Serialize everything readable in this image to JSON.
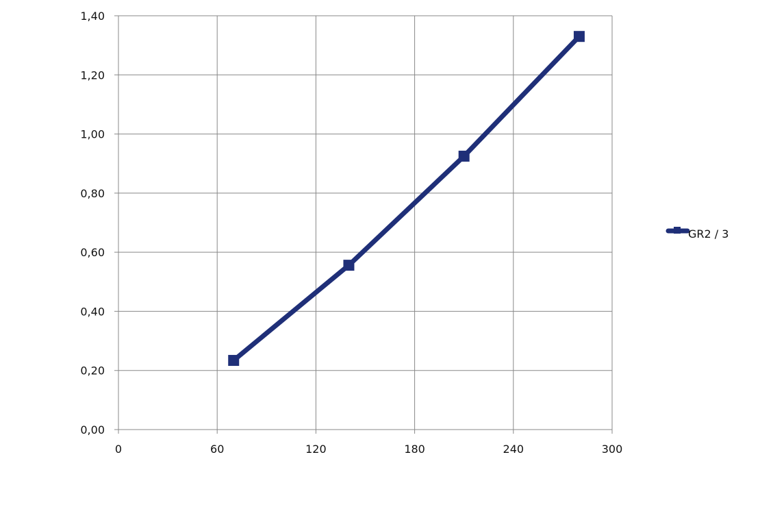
{
  "chart_data": {
    "type": "line",
    "title": "",
    "xlabel": "",
    "ylabel": "",
    "xlim": [
      0,
      300
    ],
    "ylim": [
      0,
      1.4
    ],
    "xticks": [
      0,
      60,
      120,
      180,
      240,
      300
    ],
    "xtick_labels": [
      "0",
      "60",
      "120",
      "180",
      "240",
      "300"
    ],
    "yticks": [
      0,
      0.2,
      0.4,
      0.6,
      0.8,
      1.0,
      1.2,
      1.4
    ],
    "ytick_labels": [
      "0,00",
      "0,20",
      "0,40",
      "0,60",
      "0,80",
      "1,00",
      "1,20",
      "1,40"
    ],
    "grid": true,
    "legend_placement": "right",
    "series": [
      {
        "name": "GR2 / 3",
        "color": "#1f2f78",
        "marker": "square",
        "x": [
          70,
          140,
          210,
          280
        ],
        "y": [
          0.234,
          0.556,
          0.925,
          1.33
        ]
      }
    ]
  }
}
